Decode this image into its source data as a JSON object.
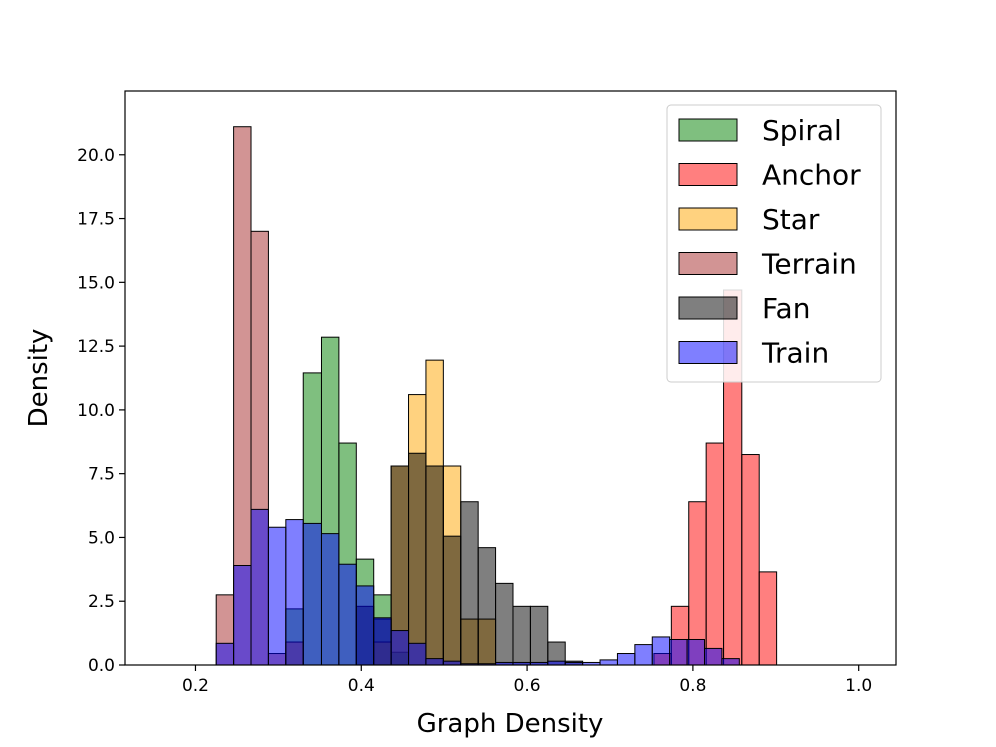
{
  "chart_data": {
    "type": "histogram",
    "xlabel": "Graph Density",
    "ylabel": "Density",
    "xlim": [
      0.115,
      1.045
    ],
    "ylim": [
      0,
      22.5
    ],
    "x_ticks": [
      "0.2",
      "0.4",
      "0.6",
      "0.8",
      "1.0"
    ],
    "x_tick_values": [
      0.2,
      0.4,
      0.6,
      0.8,
      1.0
    ],
    "y_ticks": [
      "0.0",
      "2.5",
      "5.0",
      "7.5",
      "10.0",
      "12.5",
      "15.0",
      "17.5",
      "20.0"
    ],
    "y_tick_values": [
      0.0,
      2.5,
      5.0,
      7.5,
      10.0,
      12.5,
      15.0,
      17.5,
      20.0
    ],
    "grid": false,
    "legend_position": "top-right",
    "bin_start": 0.155,
    "bin_width": 0.0212,
    "series": [
      {
        "name": "Spiral",
        "color": "#008000",
        "opacity": 0.5,
        "values": [
          0,
          0,
          0,
          0,
          0,
          0,
          0,
          0,
          0,
          0,
          0,
          0,
          0,
          0,
          0,
          0,
          0,
          0,
          0,
          0,
          0,
          0,
          0,
          0,
          0,
          0,
          0,
          0,
          0,
          0,
          0,
          0,
          0,
          0,
          0,
          0,
          0,
          0,
          0,
          0,
          0,
          0,
          0,
          0,
          0,
          0
        ],
        "bins": [
          {
            "x0": 0.33,
            "x1": 0.352,
            "y": 11.45
          },
          {
            "x0": 0.352,
            "x1": 0.373,
            "y": 12.85
          },
          {
            "x0": 0.373,
            "x1": 0.394,
            "y": 8.7
          },
          {
            "x0": 0.394,
            "x1": 0.415,
            "y": 4.15
          },
          {
            "x0": 0.415,
            "x1": 0.436,
            "y": 2.75
          },
          {
            "x0": 0.436,
            "x1": 0.457,
            "y": 0.5
          },
          {
            "x0": 0.309,
            "x1": 0.33,
            "y": 2.2
          }
        ]
      },
      {
        "name": "Anchor",
        "color": "#ff0000",
        "opacity": 0.5,
        "bins": [
          {
            "x0": 0.774,
            "x1": 0.795,
            "y": 2.3
          },
          {
            "x0": 0.795,
            "x1": 0.816,
            "y": 6.4
          },
          {
            "x0": 0.816,
            "x1": 0.837,
            "y": 8.7
          },
          {
            "x0": 0.837,
            "x1": 0.859,
            "y": 14.7
          },
          {
            "x0": 0.859,
            "x1": 0.88,
            "y": 8.25
          },
          {
            "x0": 0.88,
            "x1": 0.901,
            "y": 3.65
          },
          {
            "x0": 0.753,
            "x1": 0.774,
            "y": 0.45
          }
        ]
      },
      {
        "name": "Star",
        "color": "#ffa500",
        "opacity": 0.5,
        "bins": [
          {
            "x0": 0.436,
            "x1": 0.457,
            "y": 7.8
          },
          {
            "x0": 0.457,
            "x1": 0.478,
            "y": 10.6
          },
          {
            "x0": 0.478,
            "x1": 0.499,
            "y": 11.95
          },
          {
            "x0": 0.499,
            "x1": 0.52,
            "y": 7.8
          },
          {
            "x0": 0.52,
            "x1": 0.541,
            "y": 1.8
          },
          {
            "x0": 0.541,
            "x1": 0.562,
            "y": 1.8
          },
          {
            "x0": 0.415,
            "x1": 0.436,
            "y": 0.9
          }
        ]
      },
      {
        "name": "Terrain",
        "color": "#a52a2a",
        "opacity": 0.5,
        "bins": [
          {
            "x0": 0.225,
            "x1": 0.246,
            "y": 2.75
          },
          {
            "x0": 0.246,
            "x1": 0.267,
            "y": 21.1
          },
          {
            "x0": 0.267,
            "x1": 0.288,
            "y": 17.0
          },
          {
            "x0": 0.288,
            "x1": 0.309,
            "y": 0.45
          },
          {
            "x0": 0.309,
            "x1": 0.33,
            "y": 0.9
          }
        ]
      },
      {
        "name": "Fan",
        "color": "#000000",
        "opacity": 0.5,
        "bins": [
          {
            "x0": 0.394,
            "x1": 0.415,
            "y": 2.3
          },
          {
            "x0": 0.415,
            "x1": 0.436,
            "y": 1.8
          },
          {
            "x0": 0.436,
            "x1": 0.457,
            "y": 7.8
          },
          {
            "x0": 0.457,
            "x1": 0.478,
            "y": 8.3
          },
          {
            "x0": 0.478,
            "x1": 0.499,
            "y": 7.8
          },
          {
            "x0": 0.499,
            "x1": 0.52,
            "y": 5.05
          },
          {
            "x0": 0.52,
            "x1": 0.541,
            "y": 6.4
          },
          {
            "x0": 0.541,
            "x1": 0.562,
            "y": 4.6
          },
          {
            "x0": 0.562,
            "x1": 0.583,
            "y": 3.2
          },
          {
            "x0": 0.583,
            "x1": 0.604,
            "y": 2.3
          },
          {
            "x0": 0.604,
            "x1": 0.625,
            "y": 2.3
          },
          {
            "x0": 0.625,
            "x1": 0.646,
            "y": 0.9
          },
          {
            "x0": 0.646,
            "x1": 0.667,
            "y": 0.15
          }
        ]
      },
      {
        "name": "Train",
        "color": "#0000ff",
        "opacity": 0.5,
        "bins": [
          {
            "x0": 0.225,
            "x1": 0.246,
            "y": 0.85
          },
          {
            "x0": 0.246,
            "x1": 0.267,
            "y": 3.9
          },
          {
            "x0": 0.267,
            "x1": 0.288,
            "y": 6.1
          },
          {
            "x0": 0.288,
            "x1": 0.309,
            "y": 5.4
          },
          {
            "x0": 0.309,
            "x1": 0.33,
            "y": 5.7
          },
          {
            "x0": 0.33,
            "x1": 0.352,
            "y": 5.55
          },
          {
            "x0": 0.352,
            "x1": 0.373,
            "y": 5.15
          },
          {
            "x0": 0.373,
            "x1": 0.394,
            "y": 3.95
          },
          {
            "x0": 0.394,
            "x1": 0.415,
            "y": 3.1
          },
          {
            "x0": 0.415,
            "x1": 0.436,
            "y": 1.85
          },
          {
            "x0": 0.436,
            "x1": 0.457,
            "y": 1.35
          },
          {
            "x0": 0.457,
            "x1": 0.478,
            "y": 0.85
          },
          {
            "x0": 0.478,
            "x1": 0.499,
            "y": 0.25
          },
          {
            "x0": 0.499,
            "x1": 0.52,
            "y": 0.15
          },
          {
            "x0": 0.52,
            "x1": 0.541,
            "y": 0.05
          },
          {
            "x0": 0.541,
            "x1": 0.562,
            "y": 0.05
          },
          {
            "x0": 0.562,
            "x1": 0.583,
            "y": 0.1
          },
          {
            "x0": 0.583,
            "x1": 0.604,
            "y": 0.1
          },
          {
            "x0": 0.604,
            "x1": 0.625,
            "y": 0.1
          },
          {
            "x0": 0.625,
            "x1": 0.646,
            "y": 0.15
          },
          {
            "x0": 0.646,
            "x1": 0.667,
            "y": 0.1
          },
          {
            "x0": 0.667,
            "x1": 0.688,
            "y": 0.1
          },
          {
            "x0": 0.688,
            "x1": 0.709,
            "y": 0.2
          },
          {
            "x0": 0.709,
            "x1": 0.73,
            "y": 0.45
          },
          {
            "x0": 0.73,
            "x1": 0.751,
            "y": 0.8
          },
          {
            "x0": 0.751,
            "x1": 0.772,
            "y": 1.1
          },
          {
            "x0": 0.772,
            "x1": 0.793,
            "y": 1.0
          },
          {
            "x0": 0.793,
            "x1": 0.814,
            "y": 1.0
          },
          {
            "x0": 0.814,
            "x1": 0.835,
            "y": 0.65
          },
          {
            "x0": 0.835,
            "x1": 0.856,
            "y": 0.25
          }
        ]
      }
    ]
  }
}
